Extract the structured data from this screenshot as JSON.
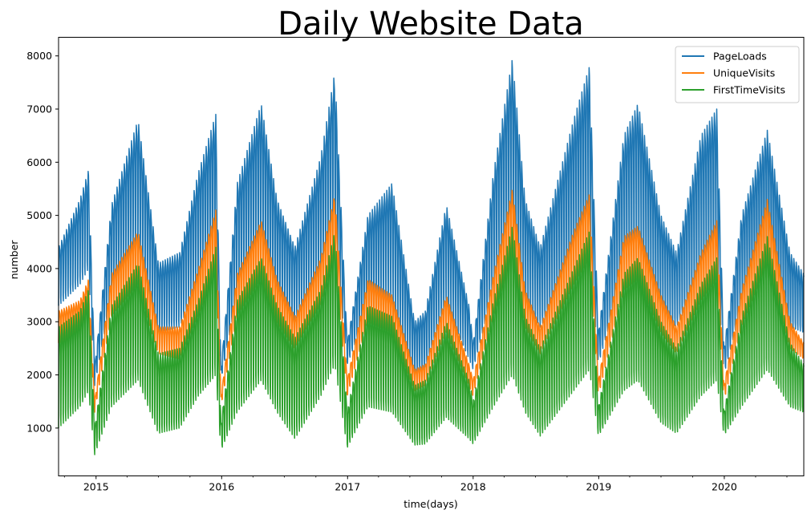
{
  "chart_data": {
    "type": "line",
    "title": "Daily Website Data",
    "xlabel": "time(days)",
    "ylabel": "number",
    "x_range": [
      "2014-09-14",
      "2020-08-19"
    ],
    "ylim": [
      100,
      8350
    ],
    "y_ticks": [
      1000,
      2000,
      3000,
      4000,
      5000,
      6000,
      7000,
      8000
    ],
    "x_ticks": [
      {
        "date": "2015-01-01",
        "label": "2015"
      },
      {
        "date": "2016-01-01",
        "label": "2016"
      },
      {
        "date": "2017-01-01",
        "label": "2017"
      },
      {
        "date": "2018-01-01",
        "label": "2018"
      },
      {
        "date": "2019-01-01",
        "label": "2019"
      },
      {
        "date": "2020-01-01",
        "label": "2020"
      }
    ],
    "grid": false,
    "legend_position": "top-right",
    "weekly_oscillation": true,
    "series": [
      {
        "name": "PageLoads",
        "color": "#1f77b4",
        "peaks": [
          [
            "2014-09-14",
            4400
          ],
          [
            "2014-11-15",
            5300
          ],
          [
            "2014-12-10",
            5850
          ],
          [
            "2014-12-28",
            2150
          ],
          [
            "2015-02-15",
            5200
          ],
          [
            "2015-05-03",
            6800
          ],
          [
            "2015-07-01",
            4100
          ],
          [
            "2015-09-01",
            4300
          ],
          [
            "2015-10-25",
            5800
          ],
          [
            "2015-12-15",
            6900
          ],
          [
            "2015-12-30",
            2100
          ],
          [
            "2016-02-15",
            5600
          ],
          [
            "2016-04-25",
            7100
          ],
          [
            "2016-06-10",
            5300
          ],
          [
            "2016-08-01",
            4400
          ],
          [
            "2016-10-15",
            6100
          ],
          [
            "2016-11-25",
            7700
          ],
          [
            "2016-12-31",
            2600
          ],
          [
            "2017-03-01",
            5000
          ],
          [
            "2017-05-10",
            5600
          ],
          [
            "2017-07-15",
            3000
          ],
          [
            "2017-08-15",
            3200
          ],
          [
            "2017-10-15",
            5200
          ],
          [
            "2017-12-20",
            3300
          ],
          [
            "2018-01-01",
            2600
          ],
          [
            "2018-03-01",
            5800
          ],
          [
            "2018-04-25",
            7950
          ],
          [
            "2018-06-01",
            5300
          ],
          [
            "2018-07-15",
            4400
          ],
          [
            "2018-10-20",
            6800
          ],
          [
            "2018-12-05",
            7800
          ],
          [
            "2018-12-31",
            2800
          ],
          [
            "2019-03-15",
            6500
          ],
          [
            "2019-04-25",
            7100
          ],
          [
            "2019-07-01",
            5000
          ],
          [
            "2019-08-15",
            4300
          ],
          [
            "2019-10-25",
            6500
          ],
          [
            "2019-12-10",
            7000
          ],
          [
            "2019-12-31",
            2500
          ],
          [
            "2020-02-20",
            5000
          ],
          [
            "2020-05-05",
            6600
          ],
          [
            "2020-07-10",
            4300
          ],
          [
            "2020-08-19",
            3900
          ]
        ],
        "troughs": [
          [
            "2014-09-14",
            3300
          ],
          [
            "2014-11-15",
            3700
          ],
          [
            "2014-12-10",
            4000
          ],
          [
            "2014-12-28",
            1800
          ],
          [
            "2015-02-15",
            3500
          ],
          [
            "2015-05-03",
            4300
          ],
          [
            "2015-07-01",
            2800
          ],
          [
            "2015-09-01",
            2900
          ],
          [
            "2015-10-25",
            3700
          ],
          [
            "2015-12-15",
            4200
          ],
          [
            "2015-12-30",
            1900
          ],
          [
            "2016-02-15",
            3500
          ],
          [
            "2016-04-25",
            4300
          ],
          [
            "2016-06-10",
            3400
          ],
          [
            "2016-08-01",
            3000
          ],
          [
            "2016-10-15",
            3800
          ],
          [
            "2016-11-25",
            4600
          ],
          [
            "2016-12-31",
            2200
          ],
          [
            "2017-03-01",
            3200
          ],
          [
            "2017-05-10",
            3400
          ],
          [
            "2017-07-15",
            2000
          ],
          [
            "2017-08-15",
            2100
          ],
          [
            "2017-10-15",
            3300
          ],
          [
            "2017-12-20",
            2300
          ],
          [
            "2018-01-01",
            2100
          ],
          [
            "2018-03-01",
            3600
          ],
          [
            "2018-04-25",
            4500
          ],
          [
            "2018-06-01",
            3400
          ],
          [
            "2018-07-15",
            2900
          ],
          [
            "2018-10-20",
            3900
          ],
          [
            "2018-12-05",
            4500
          ],
          [
            "2018-12-31",
            2200
          ],
          [
            "2019-03-15",
            3900
          ],
          [
            "2019-04-25",
            4300
          ],
          [
            "2019-07-01",
            3200
          ],
          [
            "2019-08-15",
            2900
          ],
          [
            "2019-10-25",
            3800
          ],
          [
            "2019-12-10",
            4200
          ],
          [
            "2019-12-31",
            2000
          ],
          [
            "2020-02-20",
            3300
          ],
          [
            "2020-05-05",
            4000
          ],
          [
            "2020-07-10",
            2900
          ],
          [
            "2020-08-19",
            2800
          ]
        ]
      },
      {
        "name": "UniqueVisits",
        "color": "#ff7f0e",
        "peaks": [
          [
            "2014-09-14",
            3200
          ],
          [
            "2014-11-15",
            3400
          ],
          [
            "2014-12-10",
            3800
          ],
          [
            "2014-12-28",
            1500
          ],
          [
            "2015-02-15",
            3900
          ],
          [
            "2015-05-03",
            4700
          ],
          [
            "2015-07-01",
            2900
          ],
          [
            "2015-09-01",
            2900
          ],
          [
            "2015-10-25",
            4000
          ],
          [
            "2015-12-15",
            5100
          ],
          [
            "2015-12-30",
            1600
          ],
          [
            "2016-02-15",
            3900
          ],
          [
            "2016-04-25",
            4900
          ],
          [
            "2016-06-10",
            3800
          ],
          [
            "2016-08-01",
            3100
          ],
          [
            "2016-10-15",
            4200
          ],
          [
            "2016-11-25",
            5400
          ],
          [
            "2016-12-31",
            1900
          ],
          [
            "2017-03-01",
            3800
          ],
          [
            "2017-05-10",
            3500
          ],
          [
            "2017-07-15",
            2100
          ],
          [
            "2017-08-15",
            2200
          ],
          [
            "2017-10-15",
            3500
          ],
          [
            "2017-12-20",
            2200
          ],
          [
            "2018-01-01",
            1900
          ],
          [
            "2018-03-01",
            3900
          ],
          [
            "2018-04-25",
            5500
          ],
          [
            "2018-06-01",
            3600
          ],
          [
            "2018-07-15",
            2900
          ],
          [
            "2018-10-20",
            4700
          ],
          [
            "2018-12-05",
            5400
          ],
          [
            "2018-12-31",
            1900
          ],
          [
            "2019-03-15",
            4600
          ],
          [
            "2019-04-25",
            4800
          ],
          [
            "2019-07-01",
            3500
          ],
          [
            "2019-08-15",
            2900
          ],
          [
            "2019-10-25",
            4300
          ],
          [
            "2019-12-10",
            4900
          ],
          [
            "2019-12-31",
            1800
          ],
          [
            "2020-02-20",
            3600
          ],
          [
            "2020-05-05",
            5300
          ],
          [
            "2020-07-10",
            3000
          ],
          [
            "2020-08-19",
            2600
          ]
        ],
        "troughs": [
          [
            "2014-09-14",
            2600
          ],
          [
            "2014-11-15",
            2700
          ],
          [
            "2014-12-10",
            3000
          ],
          [
            "2014-12-28",
            1300
          ],
          [
            "2015-02-15",
            3100
          ],
          [
            "2015-05-03",
            3700
          ],
          [
            "2015-07-01",
            2400
          ],
          [
            "2015-09-01",
            2300
          ],
          [
            "2015-10-25",
            3100
          ],
          [
            "2015-12-15",
            3900
          ],
          [
            "2015-12-30",
            1400
          ],
          [
            "2016-02-15",
            3100
          ],
          [
            "2016-04-25",
            3800
          ],
          [
            "2016-06-10",
            3000
          ],
          [
            "2016-08-01",
            2500
          ],
          [
            "2016-10-15",
            3300
          ],
          [
            "2016-11-25",
            4200
          ],
          [
            "2016-12-31",
            1600
          ],
          [
            "2017-03-01",
            3000
          ],
          [
            "2017-05-10",
            2800
          ],
          [
            "2017-07-15",
            1700
          ],
          [
            "2017-08-15",
            1800
          ],
          [
            "2017-10-15",
            2800
          ],
          [
            "2017-12-20",
            1800
          ],
          [
            "2018-01-01",
            1600
          ],
          [
            "2018-03-01",
            3100
          ],
          [
            "2018-04-25",
            4200
          ],
          [
            "2018-06-01",
            2900
          ],
          [
            "2018-07-15",
            2400
          ],
          [
            "2018-10-20",
            3700
          ],
          [
            "2018-12-05",
            4200
          ],
          [
            "2018-12-31",
            1600
          ],
          [
            "2019-03-15",
            3600
          ],
          [
            "2019-04-25",
            3800
          ],
          [
            "2019-07-01",
            2800
          ],
          [
            "2019-08-15",
            2400
          ],
          [
            "2019-10-25",
            3400
          ],
          [
            "2019-12-10",
            3800
          ],
          [
            "2019-12-31",
            1500
          ],
          [
            "2020-02-20",
            2900
          ],
          [
            "2020-05-05",
            4100
          ],
          [
            "2020-07-10",
            2500
          ],
          [
            "2020-08-19",
            2300
          ]
        ]
      },
      {
        "name": "FirstTimeVisits",
        "color": "#2ca02c",
        "peaks": [
          [
            "2014-09-14",
            2900
          ],
          [
            "2014-11-15",
            3200
          ],
          [
            "2014-12-10",
            3600
          ],
          [
            "2014-12-28",
            1000
          ],
          [
            "2015-02-15",
            3300
          ],
          [
            "2015-05-03",
            4100
          ],
          [
            "2015-07-01",
            2400
          ],
          [
            "2015-09-01",
            2500
          ],
          [
            "2015-10-25",
            3400
          ],
          [
            "2015-12-15",
            4400
          ],
          [
            "2015-12-30",
            1100
          ],
          [
            "2016-02-15",
            3400
          ],
          [
            "2016-04-25",
            4200
          ],
          [
            "2016-06-10",
            3300
          ],
          [
            "2016-08-01",
            2700
          ],
          [
            "2016-10-15",
            3600
          ],
          [
            "2016-11-25",
            4700
          ],
          [
            "2016-12-31",
            1300
          ],
          [
            "2017-03-01",
            3300
          ],
          [
            "2017-05-10",
            3100
          ],
          [
            "2017-07-15",
            1800
          ],
          [
            "2017-08-15",
            1900
          ],
          [
            "2017-10-15",
            3000
          ],
          [
            "2017-12-20",
            1900
          ],
          [
            "2018-01-01",
            1500
          ],
          [
            "2018-03-01",
            3400
          ],
          [
            "2018-04-25",
            4800
          ],
          [
            "2018-06-01",
            3100
          ],
          [
            "2018-07-15",
            2500
          ],
          [
            "2018-10-20",
            4000
          ],
          [
            "2018-12-05",
            4700
          ],
          [
            "2018-12-31",
            1400
          ],
          [
            "2019-03-15",
            3900
          ],
          [
            "2019-04-25",
            4200
          ],
          [
            "2019-07-01",
            3000
          ],
          [
            "2019-08-15",
            2500
          ],
          [
            "2019-10-25",
            3700
          ],
          [
            "2019-12-10",
            4200
          ],
          [
            "2019-12-31",
            1300
          ],
          [
            "2020-02-20",
            3100
          ],
          [
            "2020-05-05",
            4600
          ],
          [
            "2020-07-10",
            2600
          ],
          [
            "2020-08-19",
            2200
          ]
        ],
        "troughs": [
          [
            "2014-09-14",
            1000
          ],
          [
            "2014-11-15",
            1400
          ],
          [
            "2014-12-10",
            1700
          ],
          [
            "2014-12-28",
            500
          ],
          [
            "2015-02-15",
            1400
          ],
          [
            "2015-05-03",
            1900
          ],
          [
            "2015-07-01",
            900
          ],
          [
            "2015-09-01",
            1000
          ],
          [
            "2015-10-25",
            1600
          ],
          [
            "2015-12-15",
            2000
          ],
          [
            "2015-12-30",
            580
          ],
          [
            "2016-02-15",
            1300
          ],
          [
            "2016-04-25",
            1900
          ],
          [
            "2016-06-10",
            1300
          ],
          [
            "2016-08-01",
            800
          ],
          [
            "2016-10-15",
            1600
          ],
          [
            "2016-11-25",
            2200
          ],
          [
            "2016-12-31",
            630
          ],
          [
            "2017-03-01",
            1400
          ],
          [
            "2017-05-10",
            1300
          ],
          [
            "2017-07-15",
            680
          ],
          [
            "2017-08-15",
            700
          ],
          [
            "2017-10-15",
            1200
          ],
          [
            "2017-12-20",
            800
          ],
          [
            "2018-01-01",
            700
          ],
          [
            "2018-03-01",
            1400
          ],
          [
            "2018-04-25",
            2000
          ],
          [
            "2018-06-01",
            1300
          ],
          [
            "2018-07-15",
            850
          ],
          [
            "2018-10-20",
            1700
          ],
          [
            "2018-12-05",
            2100
          ],
          [
            "2018-12-31",
            850
          ],
          [
            "2019-03-15",
            1700
          ],
          [
            "2019-04-25",
            1900
          ],
          [
            "2019-07-01",
            1100
          ],
          [
            "2019-08-15",
            900
          ],
          [
            "2019-10-25",
            1600
          ],
          [
            "2019-12-10",
            1900
          ],
          [
            "2019-12-31",
            860
          ],
          [
            "2020-02-20",
            1400
          ],
          [
            "2020-05-05",
            2100
          ],
          [
            "2020-07-10",
            1400
          ],
          [
            "2020-08-19",
            1300
          ]
        ]
      }
    ]
  }
}
